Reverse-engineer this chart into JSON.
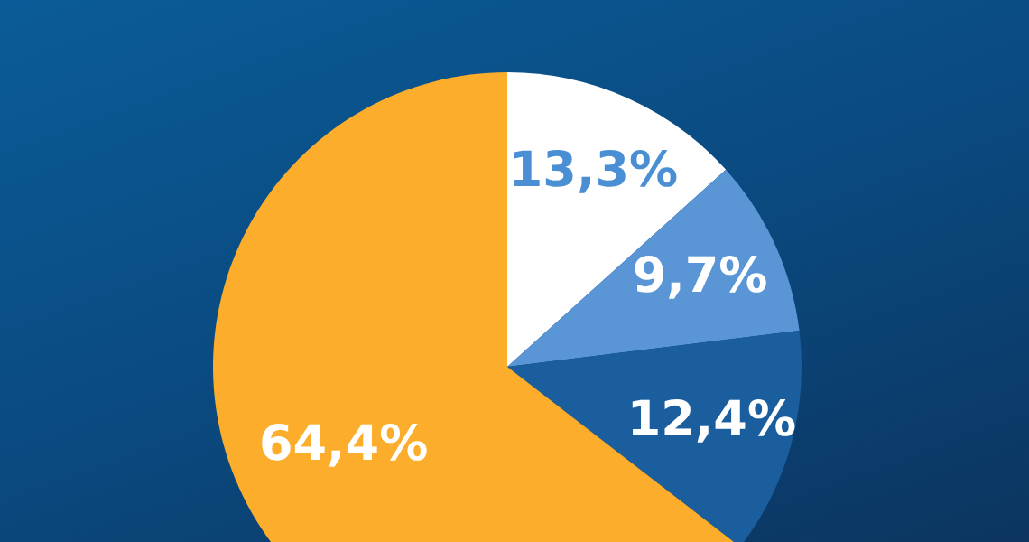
{
  "chart_data": {
    "type": "pie",
    "categories": [
      null,
      null,
      null,
      null
    ],
    "values": [
      13.3,
      9.7,
      12.4,
      64.4
    ],
    "colors": [
      "#ffffff",
      "#5a96d6",
      "#1a5e9e",
      "#fbad2b"
    ],
    "value_labels": [
      "13,3%",
      "9,7%",
      "12,4%",
      "64,4%"
    ],
    "legend": false
  }
}
